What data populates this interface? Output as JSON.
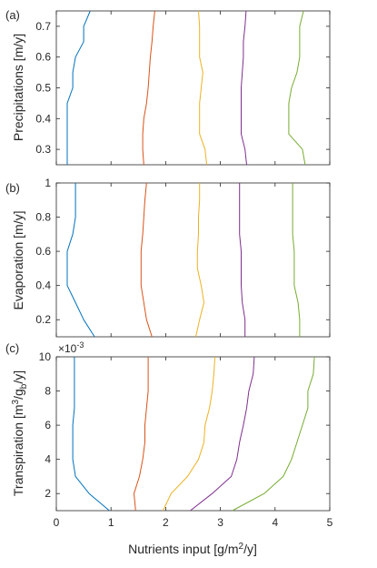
{
  "chart_data": [
    {
      "type": "line",
      "panel_label": "(a)",
      "ylabel": "Precipitations [m/y]",
      "xlim": [
        0,
        5
      ],
      "ylim": [
        0.25,
        0.75
      ],
      "yticks": [
        0.3,
        0.4,
        0.5,
        0.6,
        0.7
      ],
      "yticklabels": [
        "0.3",
        "0.4",
        "0.5",
        "0.6",
        "0.7"
      ],
      "series": [
        {
          "color": "#0072BD",
          "points": [
            [
              0.2,
              0.25
            ],
            [
              0.2,
              0.3
            ],
            [
              0.2,
              0.35
            ],
            [
              0.2,
              0.4
            ],
            [
              0.2,
              0.45
            ],
            [
              0.3,
              0.5
            ],
            [
              0.3,
              0.55
            ],
            [
              0.35,
              0.6
            ],
            [
              0.5,
              0.65
            ],
            [
              0.5,
              0.7
            ],
            [
              0.62,
              0.75
            ]
          ]
        },
        {
          "color": "#D95319",
          "points": [
            [
              1.6,
              0.25
            ],
            [
              1.58,
              0.3
            ],
            [
              1.58,
              0.35
            ],
            [
              1.6,
              0.4
            ],
            [
              1.65,
              0.45
            ],
            [
              1.68,
              0.5
            ],
            [
              1.7,
              0.55
            ],
            [
              1.72,
              0.6
            ],
            [
              1.75,
              0.65
            ],
            [
              1.77,
              0.7
            ],
            [
              1.8,
              0.75
            ]
          ]
        },
        {
          "color": "#EDB120",
          "points": [
            [
              2.75,
              0.25
            ],
            [
              2.72,
              0.3
            ],
            [
              2.62,
              0.35
            ],
            [
              2.62,
              0.4
            ],
            [
              2.62,
              0.45
            ],
            [
              2.65,
              0.5
            ],
            [
              2.68,
              0.55
            ],
            [
              2.62,
              0.6
            ],
            [
              2.62,
              0.65
            ],
            [
              2.62,
              0.7
            ],
            [
              2.6,
              0.75
            ]
          ]
        },
        {
          "color": "#7E2F8E",
          "points": [
            [
              3.48,
              0.25
            ],
            [
              3.45,
              0.3
            ],
            [
              3.38,
              0.35
            ],
            [
              3.38,
              0.4
            ],
            [
              3.38,
              0.45
            ],
            [
              3.38,
              0.5
            ],
            [
              3.4,
              0.55
            ],
            [
              3.42,
              0.6
            ],
            [
              3.42,
              0.65
            ],
            [
              3.45,
              0.7
            ],
            [
              3.47,
              0.75
            ]
          ]
        },
        {
          "color": "#77AC30",
          "points": [
            [
              4.55,
              0.25
            ],
            [
              4.5,
              0.3
            ],
            [
              4.25,
              0.35
            ],
            [
              4.25,
              0.4
            ],
            [
              4.25,
              0.45
            ],
            [
              4.3,
              0.5
            ],
            [
              4.4,
              0.55
            ],
            [
              4.45,
              0.6
            ],
            [
              4.45,
              0.65
            ],
            [
              4.45,
              0.7
            ],
            [
              4.52,
              0.75
            ]
          ]
        }
      ]
    },
    {
      "type": "line",
      "panel_label": "(b)",
      "ylabel": "Evaporation [m/y]",
      "xlim": [
        0,
        5
      ],
      "ylim": [
        0.1,
        1.0
      ],
      "yticks": [
        0.2,
        0.4,
        0.6,
        0.8,
        1.0
      ],
      "yticklabels": [
        "0.2",
        "0.4",
        "0.6",
        "0.8",
        "1"
      ],
      "series": [
        {
          "color": "#0072BD",
          "points": [
            [
              0.7,
              0.1
            ],
            [
              0.5,
              0.2
            ],
            [
              0.35,
              0.3
            ],
            [
              0.2,
              0.4
            ],
            [
              0.2,
              0.5
            ],
            [
              0.2,
              0.6
            ],
            [
              0.3,
              0.7
            ],
            [
              0.35,
              0.8
            ],
            [
              0.35,
              0.9
            ],
            [
              0.35,
              1.0
            ]
          ]
        },
        {
          "color": "#D95319",
          "points": [
            [
              1.75,
              0.1
            ],
            [
              1.65,
              0.2
            ],
            [
              1.6,
              0.3
            ],
            [
              1.55,
              0.4
            ],
            [
              1.55,
              0.5
            ],
            [
              1.55,
              0.6
            ],
            [
              1.58,
              0.7
            ],
            [
              1.6,
              0.8
            ],
            [
              1.62,
              0.9
            ],
            [
              1.65,
              1.0
            ]
          ]
        },
        {
          "color": "#EDB120",
          "points": [
            [
              2.55,
              0.1
            ],
            [
              2.62,
              0.2
            ],
            [
              2.7,
              0.3
            ],
            [
              2.65,
              0.4
            ],
            [
              2.58,
              0.5
            ],
            [
              2.58,
              0.6
            ],
            [
              2.6,
              0.7
            ],
            [
              2.6,
              0.8
            ],
            [
              2.62,
              0.9
            ],
            [
              2.62,
              1.0
            ]
          ]
        },
        {
          "color": "#7E2F8E",
          "points": [
            [
              3.45,
              0.1
            ],
            [
              3.45,
              0.2
            ],
            [
              3.4,
              0.3
            ],
            [
              3.38,
              0.4
            ],
            [
              3.38,
              0.5
            ],
            [
              3.38,
              0.6
            ],
            [
              3.35,
              0.7
            ],
            [
              3.35,
              0.8
            ],
            [
              3.35,
              0.9
            ],
            [
              3.35,
              1.0
            ]
          ]
        },
        {
          "color": "#77AC30",
          "points": [
            [
              4.45,
              0.1
            ],
            [
              4.45,
              0.2
            ],
            [
              4.42,
              0.3
            ],
            [
              4.35,
              0.4
            ],
            [
              4.35,
              0.5
            ],
            [
              4.35,
              0.6
            ],
            [
              4.32,
              0.7
            ],
            [
              4.32,
              0.8
            ],
            [
              4.32,
              0.9
            ],
            [
              4.32,
              1.0
            ]
          ]
        }
      ]
    },
    {
      "type": "line",
      "panel_label": "(c)",
      "ylabel": "Transpiration [m",
      "ylabel_sup": "3",
      "ylabel_mid": "/g",
      "ylabel_sub": "b",
      "ylabel_tail": "/y]",
      "multiplier": "×10",
      "multiplier_exp": "-3",
      "xlim": [
        0,
        5
      ],
      "ylim": [
        1,
        10
      ],
      "yticks": [
        2,
        4,
        6,
        8,
        10
      ],
      "yticklabels": [
        "2",
        "4",
        "6",
        "8",
        "10"
      ],
      "xticks": [
        0,
        1,
        2,
        3,
        4,
        5
      ],
      "xticklabels": [
        "0",
        "1",
        "2",
        "3",
        "4",
        "5"
      ],
      "xlabel": "Nutrients input [g/m",
      "xlabel_sup": "2",
      "xlabel_tail": "/y]",
      "series": [
        {
          "color": "#0072BD",
          "points": [
            [
              0.97,
              1
            ],
            [
              0.6,
              2
            ],
            [
              0.35,
              3
            ],
            [
              0.3,
              4
            ],
            [
              0.3,
              5
            ],
            [
              0.3,
              6
            ],
            [
              0.33,
              7
            ],
            [
              0.33,
              8
            ],
            [
              0.33,
              9
            ],
            [
              0.33,
              10
            ]
          ]
        },
        {
          "color": "#D95319",
          "points": [
            [
              1.45,
              1
            ],
            [
              1.42,
              2
            ],
            [
              1.52,
              3
            ],
            [
              1.58,
              4
            ],
            [
              1.62,
              5
            ],
            [
              1.62,
              6
            ],
            [
              1.65,
              7
            ],
            [
              1.68,
              8
            ],
            [
              1.68,
              9
            ],
            [
              1.68,
              10
            ]
          ]
        },
        {
          "color": "#EDB120",
          "points": [
            [
              1.95,
              1
            ],
            [
              2.1,
              2
            ],
            [
              2.4,
              3
            ],
            [
              2.6,
              4
            ],
            [
              2.7,
              5
            ],
            [
              2.72,
              6
            ],
            [
              2.8,
              7
            ],
            [
              2.85,
              8
            ],
            [
              2.88,
              9
            ],
            [
              2.9,
              10
            ]
          ]
        },
        {
          "color": "#7E2F8E",
          "points": [
            [
              2.45,
              1
            ],
            [
              2.85,
              2
            ],
            [
              3.2,
              3
            ],
            [
              3.3,
              4
            ],
            [
              3.35,
              5
            ],
            [
              3.42,
              6
            ],
            [
              3.48,
              7
            ],
            [
              3.52,
              8
            ],
            [
              3.6,
              9
            ],
            [
              3.62,
              10
            ]
          ]
        },
        {
          "color": "#77AC30",
          "points": [
            [
              3.22,
              1
            ],
            [
              3.8,
              2
            ],
            [
              4.15,
              3
            ],
            [
              4.3,
              4
            ],
            [
              4.4,
              5
            ],
            [
              4.5,
              6
            ],
            [
              4.6,
              7
            ],
            [
              4.6,
              8
            ],
            [
              4.7,
              9
            ],
            [
              4.72,
              10
            ]
          ]
        }
      ]
    }
  ]
}
